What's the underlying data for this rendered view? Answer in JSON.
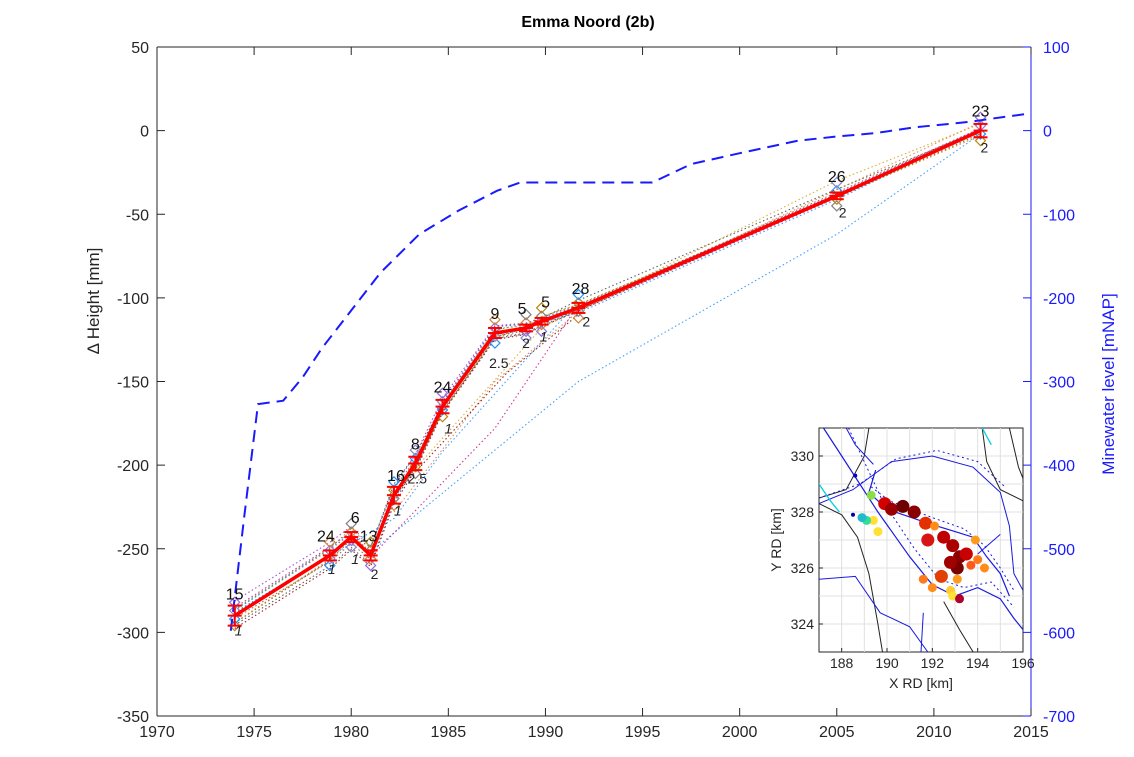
{
  "chart_data": [
    {
      "type": "line",
      "title": "Emma Noord (2b)",
      "xlabel": "",
      "ylabel": "Δ Height [mm]",
      "y2label": "Minewater level [mNAP]",
      "xlim": [
        1970,
        2015
      ],
      "ylim": [
        -350,
        50
      ],
      "y2lim": [
        -700,
        100
      ],
      "xticks": [
        "1970",
        "1975",
        "1980",
        "1985",
        "1990",
        "1995",
        "2000",
        "2005",
        "2010",
        "2015"
      ],
      "yticks": [
        "50",
        "0",
        "-50",
        "-100",
        "-150",
        "-200",
        "-250",
        "-300",
        "-350"
      ],
      "y2ticks": [
        "100",
        "0",
        "-100",
        "-200",
        "-300",
        "-400",
        "-500",
        "-600",
        "-700"
      ],
      "grid": false,
      "colors": {
        "main": "#ff0000",
        "water": "#1a1aff",
        "axis": "#262626",
        "y2": "#1a1aff"
      },
      "series": [
        {
          "role": "mean-subsidence",
          "x": [
            1974.0,
            1978.9,
            1980.0,
            1981.0,
            1982.2,
            1983.3,
            1984.7,
            1987.4,
            1989.0,
            1989.8,
            1991.7,
            2005.0,
            2012.4
          ],
          "y": [
            -290,
            -254,
            -243,
            -254,
            -218,
            -199,
            -165,
            -121,
            -118,
            -114,
            -106,
            -39,
            0
          ],
          "err": [
            6,
            3,
            3,
            3,
            5,
            4,
            4,
            3,
            2,
            2,
            3,
            2,
            4
          ],
          "counts": [
            "15",
            "24",
            "6",
            "13",
            "16",
            "8",
            "24",
            "9",
            "5",
            "5",
            "28",
            "26",
            "23"
          ]
        },
        {
          "role": "minewater-level",
          "x": [
            1973.8,
            1974.5,
            1975.2,
            1976.5,
            1977.5,
            1978.5,
            1979.5,
            1981.5,
            1983.5,
            1985.5,
            1987.5,
            1988.7,
            1995.5,
            1997.5,
            2000.0,
            2003.0,
            2005.0,
            2007.0,
            2009.0,
            2010.8,
            2012.0,
            2013.5,
            2014.8
          ],
          "y2": [
            -598,
            -460,
            -327,
            -323,
            -295,
            -260,
            -230,
            -170,
            -124,
            -96,
            -72,
            -62,
            -62,
            -40,
            -27,
            -12,
            -7,
            -3,
            4,
            8,
            11,
            16,
            20
          ]
        }
      ],
      "labels": {
        "small": [
          "1",
          "1",
          "1",
          "2",
          "1",
          "2.5",
          "1",
          "2.5",
          "2",
          "1",
          "2",
          "2",
          "2"
        ]
      }
    },
    {
      "type": "scatter",
      "role": "inset-map",
      "xlabel": "X RD [km]",
      "ylabel": "Y RD [km]",
      "xlim": [
        187,
        196
      ],
      "ylim": [
        323,
        331
      ],
      "xticks": [
        "188",
        "190",
        "192",
        "194",
        "196"
      ],
      "yticks": [
        "330",
        "328",
        "326",
        "324"
      ],
      "grid": true,
      "points": [
        {
          "x": 189.9,
          "y": 328.3,
          "color": "#d40000"
        },
        {
          "x": 190.2,
          "y": 328.1,
          "color": "#9b0000"
        },
        {
          "x": 190.7,
          "y": 328.2,
          "color": "#6e0000"
        },
        {
          "x": 191.2,
          "y": 328.0,
          "color": "#8a0000"
        },
        {
          "x": 191.7,
          "y": 327.6,
          "color": "#e33000"
        },
        {
          "x": 192.1,
          "y": 327.5,
          "color": "#ff8c1a"
        },
        {
          "x": 191.8,
          "y": 327.0,
          "color": "#d81515"
        },
        {
          "x": 192.5,
          "y": 327.1,
          "color": "#c00000"
        },
        {
          "x": 192.9,
          "y": 326.8,
          "color": "#aa0000"
        },
        {
          "x": 193.2,
          "y": 326.4,
          "color": "#8b0000"
        },
        {
          "x": 193.5,
          "y": 326.5,
          "color": "#c80000"
        },
        {
          "x": 193.1,
          "y": 326.0,
          "color": "#7a0000"
        },
        {
          "x": 192.8,
          "y": 326.2,
          "color": "#a00000"
        },
        {
          "x": 193.7,
          "y": 326.1,
          "color": "#ff5a1a"
        },
        {
          "x": 194.0,
          "y": 326.3,
          "color": "#ff7a1a"
        },
        {
          "x": 194.3,
          "y": 326.0,
          "color": "#ff8c1a"
        },
        {
          "x": 192.4,
          "y": 325.7,
          "color": "#e24000"
        },
        {
          "x": 191.6,
          "y": 325.6,
          "color": "#ff7a1a"
        },
        {
          "x": 192.0,
          "y": 325.3,
          "color": "#ff8c1a"
        },
        {
          "x": 193.1,
          "y": 325.6,
          "color": "#ff9a1a"
        },
        {
          "x": 192.8,
          "y": 325.2,
          "color": "#ffcc33"
        },
        {
          "x": 192.9,
          "y": 325.0,
          "color": "#ffe033"
        },
        {
          "x": 193.2,
          "y": 324.9,
          "color": "#b0002b"
        },
        {
          "x": 189.4,
          "y": 327.7,
          "color": "#ffe033"
        },
        {
          "x": 189.1,
          "y": 327.7,
          "color": "#33dd99"
        },
        {
          "x": 189.6,
          "y": 327.3,
          "color": "#ffe033"
        },
        {
          "x": 189.3,
          "y": 328.6,
          "color": "#88e044"
        },
        {
          "x": 188.9,
          "y": 327.8,
          "color": "#22bbcc"
        },
        {
          "x": 188.6,
          "y": 329.3,
          "color": "#0000cc"
        },
        {
          "x": 188.5,
          "y": 327.9,
          "color": "#0000aa"
        },
        {
          "x": 193.9,
          "y": 327.0,
          "color": "#ff9a1a"
        }
      ]
    }
  ]
}
